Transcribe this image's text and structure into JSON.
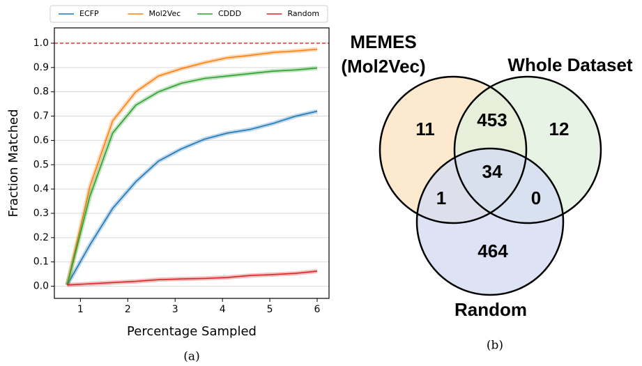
{
  "chart_data": [
    {
      "type": "line",
      "x_label": "Percentage Sampled",
      "y_label": "Fraction Matched",
      "caption": "(a)",
      "x": [
        0.72,
        1.2,
        1.68,
        2.17,
        2.65,
        3.13,
        3.62,
        4.1,
        4.58,
        5.07,
        5.55,
        6.0
      ],
      "series": [
        {
          "name": "ECFP",
          "color": "#1f77b4",
          "values": [
            0.005,
            0.17,
            0.32,
            0.43,
            0.515,
            0.565,
            0.605,
            0.63,
            0.645,
            0.67,
            0.7,
            0.72
          ]
        },
        {
          "name": "Mol2Vec",
          "color": "#ff7f0e",
          "values": [
            0.005,
            0.41,
            0.68,
            0.8,
            0.865,
            0.895,
            0.92,
            0.94,
            0.95,
            0.962,
            0.968,
            0.975
          ]
        },
        {
          "name": "CDDD",
          "color": "#2ca02c",
          "values": [
            0.005,
            0.37,
            0.63,
            0.745,
            0.8,
            0.835,
            0.855,
            0.865,
            0.875,
            0.885,
            0.89,
            0.898
          ]
        },
        {
          "name": "Random",
          "color": "#d62728",
          "values": [
            0.005,
            0.01,
            0.015,
            0.02,
            0.027,
            0.03,
            0.032,
            0.036,
            0.044,
            0.048,
            0.053,
            0.062
          ]
        }
      ],
      "reference_line": {
        "value": 1.0,
        "color": "#d62728"
      },
      "xlim": [
        0.45,
        6.25
      ],
      "ylim": [
        -0.05,
        1.063
      ],
      "xticks": [
        1,
        2,
        3,
        4,
        5,
        6
      ],
      "yticks": [
        {
          "value": 0,
          "label": "0.0"
        },
        0.1,
        0.2,
        0.3,
        0.4,
        0.5,
        0.6,
        0.7,
        0.8,
        0.9,
        {
          "value": 1,
          "label": "1.0"
        }
      ],
      "grid": true,
      "legend": "top"
    },
    {
      "type": "venn",
      "caption": "(b)",
      "sets": [
        {
          "label_lines": [
            "MEMES",
            "(Mol2Vec)"
          ],
          "color": "#fbe3c2"
        },
        {
          "label_lines": [
            "Whole Dataset"
          ],
          "color": "#e1f0dd"
        },
        {
          "label_lines": [
            "Random"
          ],
          "color": "#d5dcf1"
        }
      ],
      "regions": [
        {
          "sets": [
            0
          ],
          "value": 11
        },
        {
          "sets": [
            1
          ],
          "value": 12
        },
        {
          "sets": [
            2
          ],
          "value": 464
        },
        {
          "sets": [
            0,
            1
          ],
          "value": 453
        },
        {
          "sets": [
            0,
            2
          ],
          "value": 1
        },
        {
          "sets": [
            1,
            2
          ],
          "value": 0
        },
        {
          "sets": [
            0,
            1,
            2
          ],
          "value": 34
        }
      ]
    }
  ]
}
